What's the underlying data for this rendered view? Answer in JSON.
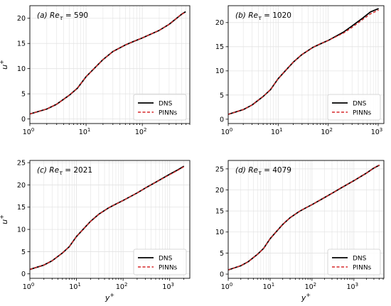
{
  "colors": {
    "dns": "#000000",
    "pinns": "#d62728",
    "grid": "#e3e3e3",
    "axis": "#000000",
    "legend_border": "#cccccc"
  },
  "chart_data": [
    {
      "type": "line",
      "label_prefix": "(a)",
      "re_value": "590",
      "xscale": "log",
      "xlim": [
        1,
        700
      ],
      "ylim": [
        -0.9,
        22.5
      ],
      "yticks": [
        0,
        5,
        10,
        15,
        20
      ],
      "xtick_exponents": [
        0,
        1,
        2
      ],
      "ylabel": "u +",
      "xlabel": "",
      "grid": true,
      "legend": "lower-right",
      "series": [
        {
          "name": "DNS",
          "style": "solid",
          "x": [
            1,
            2,
            3,
            5,
            7,
            10,
            15,
            20,
            30,
            50,
            70,
            100,
            200,
            300,
            500,
            590
          ],
          "y": [
            1.0,
            1.98,
            2.94,
            4.7,
            6.1,
            8.4,
            10.4,
            11.8,
            13.4,
            14.7,
            15.4,
            16.1,
            17.6,
            18.8,
            20.8,
            21.3
          ]
        },
        {
          "name": "PINNs",
          "style": "dashed",
          "x": [
            1,
            2,
            3,
            5,
            7,
            10,
            15,
            20,
            30,
            50,
            70,
            100,
            200,
            300,
            500,
            590
          ],
          "y": [
            1.0,
            1.98,
            2.94,
            4.7,
            6.1,
            8.4,
            10.4,
            11.8,
            13.4,
            14.7,
            15.4,
            16.1,
            17.6,
            18.8,
            20.8,
            21.2
          ]
        }
      ]
    },
    {
      "type": "line",
      "label_prefix": "(b)",
      "re_value": "1020",
      "xscale": "log",
      "xlim": [
        1,
        1300
      ],
      "ylim": [
        -0.9,
        23.5
      ],
      "yticks": [
        0,
        5,
        10,
        15,
        20
      ],
      "xtick_exponents": [
        0,
        1,
        2,
        3
      ],
      "ylabel": "",
      "xlabel": "",
      "grid": true,
      "legend": "lower-right",
      "series": [
        {
          "name": "DNS",
          "style": "solid",
          "x": [
            1,
            2,
            3,
            5,
            7,
            10,
            15,
            20,
            30,
            50,
            70,
            100,
            200,
            300,
            500,
            700,
            1020
          ],
          "y": [
            1.0,
            1.98,
            2.94,
            4.7,
            6.1,
            8.4,
            10.4,
            11.8,
            13.4,
            14.9,
            15.6,
            16.3,
            18.0,
            19.3,
            21.0,
            22.2,
            22.9
          ]
        },
        {
          "name": "PINNs",
          "style": "dashed",
          "x": [
            1,
            2,
            3,
            5,
            7,
            10,
            15,
            20,
            30,
            50,
            70,
            100,
            200,
            300,
            500,
            700,
            1020
          ],
          "y": [
            1.0,
            1.98,
            2.94,
            4.7,
            6.1,
            8.4,
            10.4,
            11.8,
            13.4,
            14.9,
            15.6,
            16.3,
            17.8,
            19.0,
            20.7,
            21.8,
            22.6
          ]
        }
      ]
    },
    {
      "type": "line",
      "label_prefix": "(c)",
      "re_value": "2021",
      "xscale": "log",
      "xlim": [
        1,
        2700
      ],
      "ylim": [
        -1.0,
        25.5
      ],
      "yticks": [
        0,
        5,
        10,
        15,
        20,
        25
      ],
      "xtick_exponents": [
        0,
        1,
        2,
        3
      ],
      "ylabel": "u +",
      "xlabel": "y +",
      "grid": true,
      "legend": "lower-right",
      "series": [
        {
          "name": "DNS",
          "style": "solid",
          "x": [
            1,
            2,
            3,
            5,
            7,
            10,
            15,
            20,
            30,
            50,
            70,
            100,
            200,
            300,
            500,
            1000,
            1500,
            2021
          ],
          "y": [
            1.0,
            1.98,
            2.94,
            4.7,
            6.1,
            8.4,
            10.4,
            11.8,
            13.4,
            14.9,
            15.7,
            16.5,
            18.2,
            19.3,
            20.6,
            22.4,
            23.4,
            24.2
          ]
        },
        {
          "name": "PINNs",
          "style": "dashed",
          "x": [
            1,
            2,
            3,
            5,
            7,
            10,
            15,
            20,
            30,
            50,
            70,
            100,
            200,
            300,
            500,
            1000,
            1500,
            2021
          ],
          "y": [
            1.0,
            1.98,
            2.94,
            4.7,
            6.1,
            8.4,
            10.4,
            11.8,
            13.4,
            14.9,
            15.7,
            16.5,
            18.2,
            19.3,
            20.6,
            22.3,
            23.3,
            24.1
          ]
        }
      ]
    },
    {
      "type": "line",
      "label_prefix": "(d)",
      "re_value": "4079",
      "xscale": "log",
      "xlim": [
        1,
        5200
      ],
      "ylim": [
        -1.0,
        27.0
      ],
      "yticks": [
        0,
        5,
        10,
        15,
        20,
        25
      ],
      "xtick_exponents": [
        0,
        1,
        2,
        3
      ],
      "ylabel": "",
      "xlabel": "y +",
      "grid": true,
      "legend": "lower-right",
      "series": [
        {
          "name": "DNS",
          "style": "solid",
          "x": [
            1,
            2,
            3,
            5,
            7,
            10,
            15,
            20,
            30,
            50,
            70,
            100,
            200,
            300,
            500,
            1000,
            2000,
            3000,
            4079
          ],
          "y": [
            1.0,
            1.98,
            2.94,
            4.7,
            6.1,
            8.4,
            10.4,
            11.8,
            13.4,
            14.9,
            15.7,
            16.5,
            18.2,
            19.2,
            20.5,
            22.2,
            24.0,
            25.2,
            25.9
          ]
        },
        {
          "name": "PINNs",
          "style": "dashed",
          "x": [
            1,
            2,
            3,
            5,
            7,
            10,
            15,
            20,
            30,
            50,
            70,
            100,
            200,
            300,
            500,
            1000,
            2000,
            3000,
            4079
          ],
          "y": [
            1.0,
            1.98,
            2.94,
            4.7,
            6.1,
            8.4,
            10.4,
            11.8,
            13.4,
            14.9,
            15.7,
            16.5,
            18.2,
            19.2,
            20.5,
            22.2,
            24.0,
            25.2,
            25.9
          ]
        }
      ]
    }
  ]
}
